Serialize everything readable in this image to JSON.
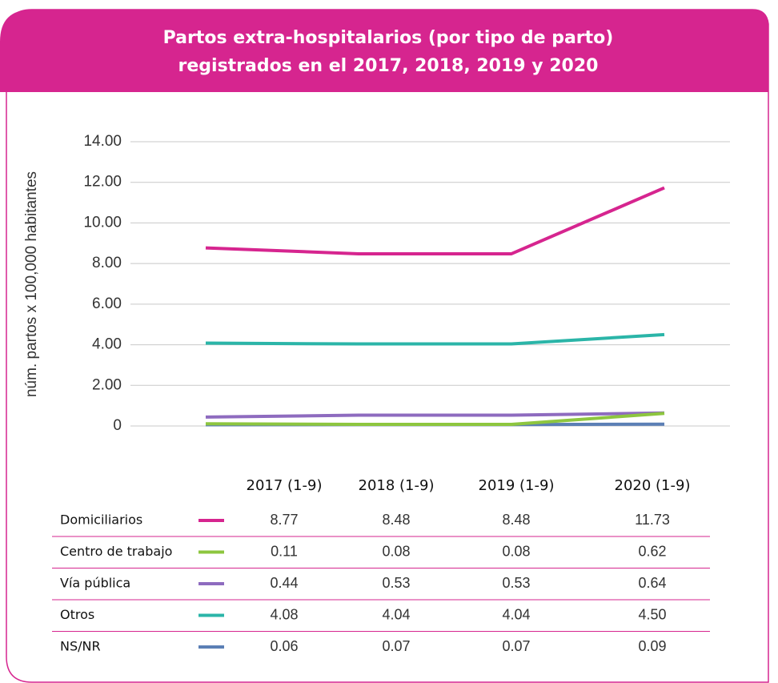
{
  "chart_data": {
    "type": "line",
    "title_lines": [
      "Partos extra-hospitalarios (por tipo de parto)",
      "registrados en el 2017, 2018, 2019 y 2020"
    ],
    "y_label": "núm. partos x 100,000 habitantes",
    "categories": [
      "2017 (1-9)",
      "2018 (1-9)",
      "2019 (1-9)",
      "2020 (1-9)"
    ],
    "series": [
      {
        "name": "Domiciliarios",
        "color": "#d6258f",
        "values": [
          8.77,
          8.48,
          8.48,
          11.73
        ],
        "value_labels": [
          "8.77",
          "8.48",
          "8.48",
          "11.73"
        ]
      },
      {
        "name": "Centro de trabajo",
        "color": "#8dc63f",
        "values": [
          0.11,
          0.08,
          0.08,
          0.62
        ],
        "value_labels": [
          "0.11",
          "0.08",
          "0.08",
          "0.62"
        ]
      },
      {
        "name": "Vía pública",
        "color": "#8e6bbf",
        "values": [
          0.44,
          0.53,
          0.53,
          0.64
        ],
        "value_labels": [
          "0.44",
          "0.53",
          "0.53",
          "0.64"
        ]
      },
      {
        "name": "Otros",
        "color": "#2bb5a8",
        "values": [
          4.08,
          4.04,
          4.04,
          4.5
        ],
        "value_labels": [
          "4.08",
          "4.04",
          "4.04",
          "4.50"
        ]
      },
      {
        "name": "NS/NR",
        "color": "#5b7fb5",
        "values": [
          0.06,
          0.07,
          0.07,
          0.09
        ],
        "value_labels": [
          "0.06",
          "0.07",
          "0.07",
          "0.09"
        ]
      }
    ],
    "ylim": [
      0,
      14
    ],
    "yticks": [
      0,
      {
        "value": 2,
        "label": "2.00"
      },
      {
        "value": 4,
        "label": "4.00"
      },
      {
        "value": 6,
        "label": "6.00"
      },
      {
        "value": 8,
        "label": "8.00"
      },
      {
        "value": 10,
        "label": "10.00"
      },
      {
        "value": 12,
        "label": "12.00"
      },
      {
        "value": 14,
        "label": "14.00"
      }
    ],
    "grid": true
  }
}
